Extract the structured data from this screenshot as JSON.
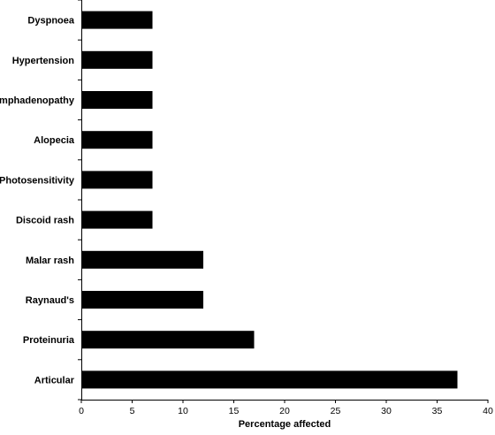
{
  "chart_data": {
    "type": "bar",
    "orientation": "horizontal",
    "categories": [
      "Dyspnoea",
      "Hypertension",
      "Lymphadenopathy",
      "Alopecia",
      "Photosensitivity",
      "Discoid rash",
      "Malar rash",
      "Raynaud's",
      "Proteinuria",
      "Articular"
    ],
    "values": [
      7,
      7,
      7,
      7,
      7,
      7,
      12,
      12,
      17,
      37
    ],
    "title": "",
    "xlabel": "Percentage affected",
    "ylabel": "",
    "xlim": [
      0,
      40
    ],
    "xticks": [
      "0",
      "5",
      "10",
      "15",
      "20",
      "25",
      "30",
      "35",
      "40"
    ],
    "grid": false,
    "legend": "none",
    "bar_color": "#000000"
  }
}
